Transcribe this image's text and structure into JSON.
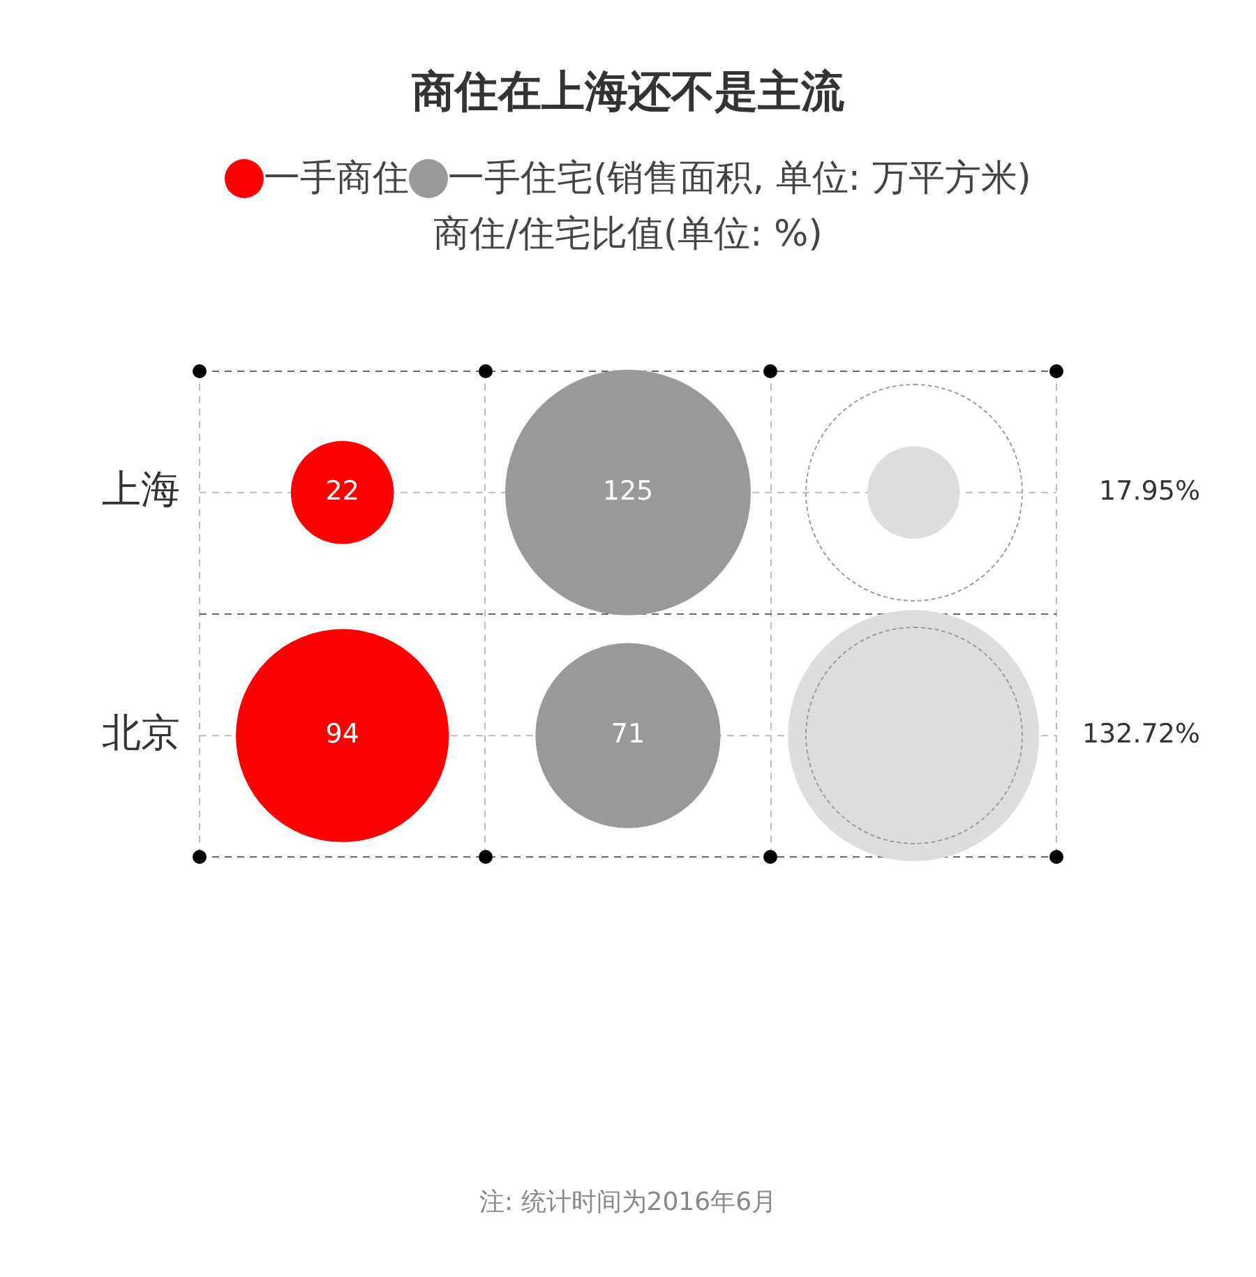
{
  "chart_data": {
    "type": "other",
    "title": "商住在上海还不是主流",
    "subtitle": "商住/住宅比值(单位: %)",
    "legend_title": "(销售面积, 单位: 万平方米)",
    "legend": "top",
    "data_labels": true,
    "categories": [
      "上海",
      "北京"
    ],
    "series": [
      {
        "name": "一手商住",
        "color": "#ff0000",
        "values": [
          22,
          94
        ]
      },
      {
        "name": "一手住宅",
        "color": "#999999",
        "values": [
          125,
          71
        ]
      },
      {
        "color": "#dddddd",
        "axis": "y2",
        "values": [
          17.95,
          132.72
        ],
        "value_labels": [
          "17.95%",
          "132.72%"
        ]
      }
    ],
    "annotations": [
      "注: 统计时间为2016年6月"
    ]
  }
}
